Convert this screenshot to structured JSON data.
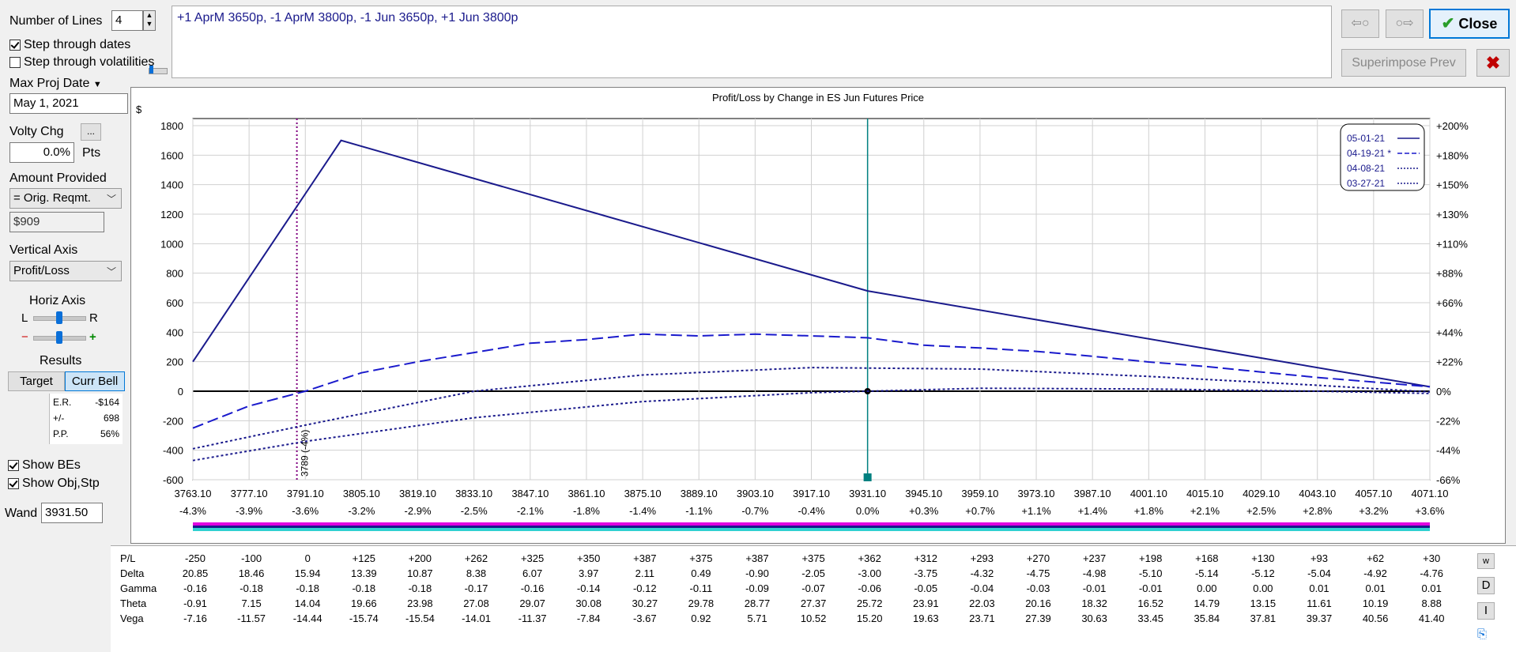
{
  "controls": {
    "number_of_lines_label": "Number of Lines",
    "number_of_lines_value": "4",
    "step_dates_label": "Step through dates",
    "step_dates_checked": true,
    "step_vols_label": "Step through volatilities",
    "step_vols_checked": false,
    "max_proj_date_label": "Max Proj Date",
    "max_proj_date_value": "May 1, 2021",
    "volty_chg_label": "Volty Chg",
    "volty_chg_button": "...",
    "volty_chg_value": "0.0%",
    "volty_chg_unit": "Pts",
    "amount_provided_label": "Amount Provided",
    "amount_provided_select": "= Orig. Reqmt.",
    "amount_provided_value": "$909",
    "vertical_axis_label": "Vertical Axis",
    "vertical_axis_select": "Profit/Loss",
    "horiz_axis_label": "Horiz Axis",
    "horiz_l": "L",
    "horiz_r": "R",
    "horiz_minus": "−",
    "horiz_plus": "+",
    "results_label": "Results",
    "target_tab": "Target",
    "curr_bell_tab": "Curr Bell",
    "results": [
      {
        "key": "E.R.",
        "value": "-$164"
      },
      {
        "key": "+/-",
        "value": "698"
      },
      {
        "key": "P.P.",
        "value": "56%"
      }
    ],
    "show_bes_label": "Show BEs",
    "show_bes_checked": true,
    "show_obj_label": "Show Obj,Stp",
    "show_obj_checked": true,
    "wand_label": "Wand",
    "wand_value": "3931.50"
  },
  "header": {
    "positions_text": "+1 AprM 3650p, -1 AprM 3800p, -1 Jun 3650p, +1 Jun 3800p",
    "back_arrow": "⇦○",
    "fwd_arrow": "○⇨",
    "close_label": "Close",
    "superimpose_label": "Superimpose Prev",
    "delete_icon_color": "#c00000"
  },
  "chart_data": {
    "type": "line",
    "title": "Profit/Loss by Change in ES Jun Futures Price",
    "ylabel": "$",
    "ylim": [
      -600,
      1900
    ],
    "xlim": [
      3763.1,
      4071.1
    ],
    "yticks": [
      1800,
      1600,
      1400,
      1200,
      1000,
      800,
      600,
      400,
      200,
      0,
      -200,
      -400,
      -600
    ],
    "right_ticks": [
      {
        "y": 1800,
        "label": "+200%"
      },
      {
        "y": 1600,
        "label": "+180%"
      },
      {
        "y": 1400,
        "label": "+150%"
      },
      {
        "y": 1200,
        "label": "+130%"
      },
      {
        "y": 1000,
        "label": "+110%"
      },
      {
        "y": 800,
        "label": "+88%"
      },
      {
        "y": 600,
        "label": "+66%"
      },
      {
        "y": 400,
        "label": "+44%"
      },
      {
        "y": 200,
        "label": "+22%"
      },
      {
        "y": 0,
        "label": "0%"
      },
      {
        "y": -200,
        "label": "-22%"
      },
      {
        "y": -400,
        "label": "-44%"
      },
      {
        "y": -600,
        "label": "-66%"
      }
    ],
    "xticks": [
      {
        "price": "3763.10",
        "pct": "-4.3%"
      },
      {
        "price": "3777.10",
        "pct": "-3.9%"
      },
      {
        "price": "3791.10",
        "pct": "-3.6%"
      },
      {
        "price": "3805.10",
        "pct": "-3.2%"
      },
      {
        "price": "3819.10",
        "pct": "-2.9%"
      },
      {
        "price": "3833.10",
        "pct": "-2.5%"
      },
      {
        "price": "3847.10",
        "pct": "-2.1%"
      },
      {
        "price": "3861.10",
        "pct": "-1.8%"
      },
      {
        "price": "3875.10",
        "pct": "-1.4%"
      },
      {
        "price": "3889.10",
        "pct": "-1.1%"
      },
      {
        "price": "3903.10",
        "pct": "-0.7%"
      },
      {
        "price": "3917.10",
        "pct": "-0.4%"
      },
      {
        "price": "3931.10",
        "pct": "0.0%"
      },
      {
        "price": "3945.10",
        "pct": "+0.3%"
      },
      {
        "price": "3959.10",
        "pct": "+0.7%"
      },
      {
        "price": "3973.10",
        "pct": "+1.1%"
      },
      {
        "price": "3987.10",
        "pct": "+1.4%"
      },
      {
        "price": "4001.10",
        "pct": "+1.8%"
      },
      {
        "price": "4015.10",
        "pct": "+2.1%"
      },
      {
        "price": "4029.10",
        "pct": "+2.5%"
      },
      {
        "price": "4043.10",
        "pct": "+2.8%"
      },
      {
        "price": "4057.10",
        "pct": "+3.2%"
      },
      {
        "price": "4071.10",
        "pct": "+3.6%"
      }
    ],
    "series": [
      {
        "name": "05-01-21",
        "style": "solid",
        "color": "#1a1a8c",
        "x": [
          3763.1,
          3800,
          3931.1,
          4071.1
        ],
        "y": [
          200,
          1700,
          680,
          30
        ]
      },
      {
        "name": "04-19-21 *",
        "style": "dashed",
        "color": "#1a1acc",
        "x": [
          3763.1,
          3777.1,
          3791.1,
          3805.1,
          3819.1,
          3833.1,
          3847.1,
          3861.1,
          3875.1,
          3889.1,
          3903.1,
          3917.1,
          3931.1,
          3945.1,
          3959.1,
          3973.1,
          3987.1,
          4001.1,
          4015.1,
          4029.1,
          4043.1,
          4057.1,
          4071.1
        ],
        "y": [
          -250,
          -100,
          0,
          125,
          200,
          262,
          325,
          350,
          387,
          375,
          387,
          375,
          362,
          312,
          293,
          270,
          237,
          198,
          168,
          130,
          93,
          62,
          30
        ]
      },
      {
        "name": "04-08-21",
        "style": "dotted",
        "color": "#1a1a8c",
        "x": [
          3763.1,
          3791.1,
          3833.1,
          3875.1,
          3917.1,
          3959.1,
          4001.1,
          4043.1,
          4071.1
        ],
        "y": [
          -390,
          -230,
          0,
          110,
          160,
          150,
          100,
          40,
          -5
        ]
      },
      {
        "name": "03-27-21",
        "style": "dotted",
        "color": "#1a1a8c",
        "x": [
          3763.1,
          3791.1,
          3833.1,
          3875.1,
          3917.1,
          3931.1,
          3959.1,
          4001.1,
          4043.1,
          4071.1
        ],
        "y": [
          -470,
          -340,
          -180,
          -70,
          -10,
          0,
          20,
          15,
          0,
          -15
        ]
      }
    ],
    "breakeven_label": "3789 (-4%)",
    "breakeven_x": 3789,
    "current_x": 3931.1,
    "legend_position": "top-right",
    "grid": true
  },
  "greeks": {
    "rows": [
      {
        "label": "P/L",
        "values": [
          "-250",
          "-100",
          "0",
          "+125",
          "+200",
          "+262",
          "+325",
          "+350",
          "+387",
          "+375",
          "+387",
          "+375",
          "+362",
          "+312",
          "+293",
          "+270",
          "+237",
          "+198",
          "+168",
          "+130",
          "+93",
          "+62",
          "+30"
        ]
      },
      {
        "label": "Delta",
        "values": [
          "20.85",
          "18.46",
          "15.94",
          "13.39",
          "10.87",
          "8.38",
          "6.07",
          "3.97",
          "2.11",
          "0.49",
          "-0.90",
          "-2.05",
          "-3.00",
          "-3.75",
          "-4.32",
          "-4.75",
          "-4.98",
          "-5.10",
          "-5.14",
          "-5.12",
          "-5.04",
          "-4.92",
          "-4.76"
        ]
      },
      {
        "label": "Gamma",
        "values": [
          "-0.16",
          "-0.18",
          "-0.18",
          "-0.18",
          "-0.18",
          "-0.17",
          "-0.16",
          "-0.14",
          "-0.12",
          "-0.11",
          "-0.09",
          "-0.07",
          "-0.06",
          "-0.05",
          "-0.04",
          "-0.03",
          "-0.01",
          "-0.01",
          "0.00",
          "0.00",
          "0.01",
          "0.01",
          "0.01"
        ]
      },
      {
        "label": "Theta",
        "values": [
          "-0.91",
          "7.15",
          "14.04",
          "19.66",
          "23.98",
          "27.08",
          "29.07",
          "30.08",
          "30.27",
          "29.78",
          "28.77",
          "27.37",
          "25.72",
          "23.91",
          "22.03",
          "20.16",
          "18.32",
          "16.52",
          "14.79",
          "13.15",
          "11.61",
          "10.19",
          "8.88"
        ]
      },
      {
        "label": "Vega",
        "values": [
          "-7.16",
          "-11.57",
          "-14.44",
          "-15.74",
          "-15.54",
          "-14.01",
          "-11.37",
          "-7.84",
          "-3.67",
          "0.92",
          "5.71",
          "10.52",
          "15.20",
          "19.63",
          "23.71",
          "27.39",
          "30.63",
          "33.45",
          "35.84",
          "37.81",
          "39.37",
          "40.56",
          "41.40"
        ]
      }
    ],
    "side_buttons": [
      "w",
      "D",
      "I"
    ]
  }
}
